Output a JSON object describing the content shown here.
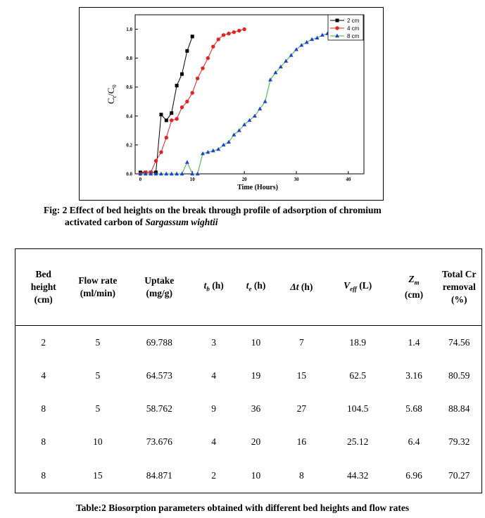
{
  "chart_data": {
    "type": "line",
    "title": "",
    "xlabel": "Time (Hours)",
    "ylabel": "C_t/C_0",
    "xlim": [
      -1,
      43
    ],
    "ylim": [
      0,
      1.1
    ],
    "x_ticks": [
      0,
      10,
      20,
      30,
      40
    ],
    "y_ticks": [
      0.0,
      0.2,
      0.4,
      0.6,
      0.8,
      1.0
    ],
    "y_tick_labels": [
      "0.0",
      "0.2",
      "0.4",
      "0.6",
      "0.8",
      "1.0"
    ],
    "legend_position": "top-right",
    "series": [
      {
        "name": "2 cm",
        "color": "#000000",
        "marker": "square",
        "x": [
          0,
          1,
          2,
          3,
          4,
          5,
          6,
          7,
          8,
          9,
          10
        ],
        "y": [
          0.01,
          0.01,
          0.01,
          0.01,
          0.41,
          0.37,
          0.42,
          0.61,
          0.69,
          0.85,
          0.95
        ]
      },
      {
        "name": "4 cm",
        "color": "#e32222",
        "marker": "circle",
        "x": [
          0,
          1,
          2,
          3,
          4,
          5,
          6,
          7,
          8,
          9,
          10,
          11,
          12,
          13,
          14,
          15,
          16,
          17,
          18,
          19,
          20
        ],
        "y": [
          0.0,
          0.01,
          0.01,
          0.09,
          0.15,
          0.25,
          0.37,
          0.38,
          0.46,
          0.5,
          0.56,
          0.66,
          0.73,
          0.8,
          0.88,
          0.93,
          0.96,
          0.97,
          0.98,
          0.99,
          1.0
        ]
      },
      {
        "name": "8 cm",
        "color": "#1f3fd4",
        "marker": "triangle",
        "x": [
          0,
          1,
          2,
          3,
          4,
          5,
          6,
          7,
          8,
          9,
          10,
          11,
          12,
          13,
          14,
          15,
          16,
          17,
          18,
          19,
          20,
          21,
          22,
          23,
          24,
          25,
          26,
          27,
          28,
          29,
          30,
          31,
          32,
          33,
          34,
          35,
          36,
          37,
          38,
          39,
          40
        ],
        "y": [
          0.0,
          0.0,
          0.0,
          0.0,
          0.0,
          0.0,
          0.0,
          0.0,
          0.0,
          0.08,
          0.0,
          0.0,
          0.14,
          0.15,
          0.16,
          0.17,
          0.2,
          0.22,
          0.27,
          0.3,
          0.34,
          0.37,
          0.4,
          0.45,
          0.5,
          0.65,
          0.7,
          0.74,
          0.78,
          0.82,
          0.86,
          0.89,
          0.91,
          0.93,
          0.94,
          0.96,
          0.97,
          0.98,
          0.985,
          0.99,
          0.99
        ]
      }
    ]
  },
  "figure_caption": {
    "line1_prefix": "Fig: 2 Effect of bed heights on the break through profile of adsorption of chromium",
    "line2_prefix": "activated carbon of ",
    "line2_italic": "Sargassum wightii"
  },
  "table": {
    "headers": {
      "bed_height": "Bed height (cm)",
      "flow_rate": "Flow rate (ml/min)",
      "uptake": "Uptake (mg/g)",
      "tb": "t",
      "tb_sub": "b",
      "tb_unit": " (h)",
      "te": "t",
      "te_sub": "e",
      "te_unit": " (h)",
      "dt": "Δt",
      "dt_unit": " (h)",
      "veff": "V",
      "veff_sub": "eff",
      "veff_unit": " (L)",
      "zm": "Z",
      "zm_sub": "m",
      "zm_unit": "(cm)",
      "removal": "Total Cr removal (%)"
    },
    "rows": [
      [
        "2",
        "5",
        "69.788",
        "3",
        "10",
        "7",
        "18.9",
        "1.4",
        "74.56"
      ],
      [
        "4",
        "5",
        "64.573",
        "4",
        "19",
        "15",
        "62.5",
        "3.16",
        "80.59"
      ],
      [
        "8",
        "5",
        "58.762",
        "9",
        "36",
        "27",
        "104.5",
        "5.68",
        "88.84"
      ],
      [
        "8",
        "10",
        "73.676",
        "4",
        "20",
        "16",
        "25.12",
        "6.4",
        "79.32"
      ],
      [
        "8",
        "15",
        "84.871",
        "2",
        "10",
        "8",
        "44.32",
        "6.96",
        "70.27"
      ]
    ]
  },
  "table_caption": "Table:2 Biosorption parameters obtained with different bed heights and flow rates"
}
